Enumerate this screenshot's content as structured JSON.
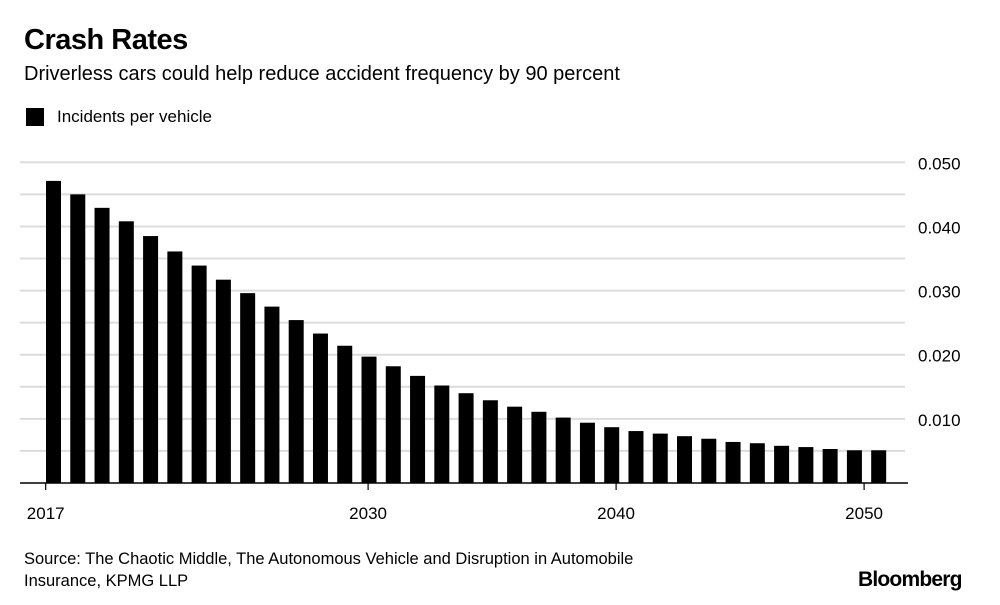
{
  "chart_data": {
    "type": "bar",
    "title": "Crash Rates",
    "subtitle": "Driverless cars could help reduce accident frequency by 90 percent",
    "legend": [
      {
        "label": "Incidents per vehicle",
        "color": "#000000"
      }
    ],
    "legend_placement": "top-left",
    "xlabel": "",
    "ylabel": "",
    "x_ticks": [
      "2017",
      "2030",
      "2040",
      "2050"
    ],
    "x_tick_years": [
      2017,
      2030,
      2040,
      2050
    ],
    "y_ticks": [
      "0.010",
      "0.020",
      "0.030",
      "0.040",
      "0.050"
    ],
    "y_tick_values": [
      0.01,
      0.02,
      0.03,
      0.04,
      0.05
    ],
    "ylim": [
      0,
      0.05
    ],
    "grid": true,
    "grid_step": 0.005,
    "y_axis_side": "right",
    "series": [
      {
        "name": "Incidents per vehicle",
        "color": "#000000",
        "values": [
          0.0471,
          0.045,
          0.0429,
          0.0408,
          0.0385,
          0.0361,
          0.0339,
          0.0317,
          0.0296,
          0.0275,
          0.0254,
          0.0233,
          0.0214,
          0.0197,
          0.0182,
          0.0167,
          0.0152,
          0.014,
          0.0129,
          0.0119,
          0.0111,
          0.0102,
          0.0094,
          0.0087,
          0.0081,
          0.0077,
          0.0073,
          0.0069,
          0.0064,
          0.0062,
          0.0058,
          0.0056,
          0.0053,
          0.0051,
          0.0051
        ]
      }
    ]
  },
  "footer": {
    "source_line1": "Source: The Chaotic Middle, The Autonomous Vehicle and Disruption in Automobile",
    "source_line2": "Insurance, KPMG LLP",
    "brand": "Bloomberg"
  }
}
